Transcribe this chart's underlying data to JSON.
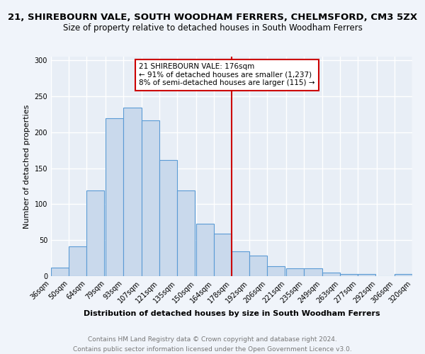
{
  "title": "21, SHIREBOURN VALE, SOUTH WOODHAM FERRERS, CHELMSFORD, CM3 5ZX",
  "subtitle": "Size of property relative to detached houses in South Woodham Ferrers",
  "xlabel": "Distribution of detached houses by size in South Woodham Ferrers",
  "ylabel": "Number of detached properties",
  "footer_line1": "Contains HM Land Registry data © Crown copyright and database right 2024.",
  "footer_line2": "Contains public sector information licensed under the Open Government Licence v3.0.",
  "bins": [
    "36sqm",
    "50sqm",
    "64sqm",
    "79sqm",
    "93sqm",
    "107sqm",
    "121sqm",
    "135sqm",
    "150sqm",
    "164sqm",
    "178sqm",
    "192sqm",
    "206sqm",
    "221sqm",
    "235sqm",
    "249sqm",
    "263sqm",
    "277sqm",
    "292sqm",
    "306sqm",
    "320sqm"
  ],
  "bar_heights": [
    12,
    41,
    119,
    219,
    234,
    216,
    161,
    119,
    73,
    59,
    34,
    29,
    14,
    11,
    11,
    5,
    3,
    3,
    0,
    3
  ],
  "bar_color": "#c9d9ec",
  "bar_edge_color": "#5b9bd5",
  "vline_x": 178,
  "vline_color": "#cc0000",
  "annotation_title": "21 SHIREBOURN VALE: 176sqm",
  "annotation_line1": "← 91% of detached houses are smaller (1,237)",
  "annotation_line2": "8% of semi-detached houses are larger (115) →",
  "annotation_box_color": "#cc0000",
  "annotation_bg": "#ffffff",
  "bin_width": 14,
  "bin_starts": [
    36,
    50,
    64,
    79,
    93,
    107,
    121,
    135,
    150,
    164,
    178,
    192,
    206,
    221,
    235,
    249,
    263,
    277,
    292,
    306
  ],
  "ylim": [
    0,
    305
  ],
  "yticks": [
    0,
    50,
    100,
    150,
    200,
    250,
    300
  ],
  "background_color": "#e8eef6",
  "grid_color": "#ffffff",
  "fig_background": "#f0f4fa",
  "title_fontsize": 9.5,
  "subtitle_fontsize": 8.5,
  "axis_label_fontsize": 8,
  "tick_fontsize": 7,
  "footer_fontsize": 6.5,
  "annotation_fontsize": 7.5
}
